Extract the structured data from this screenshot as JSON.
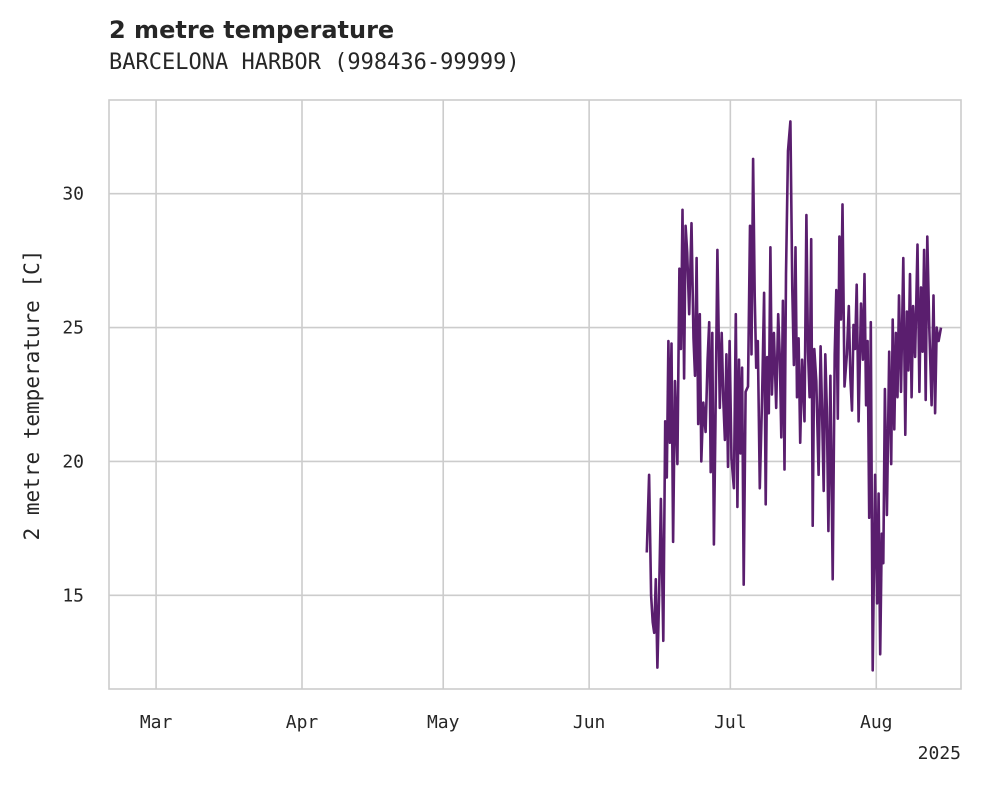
{
  "chart_data": {
    "type": "line",
    "title": "2 metre temperature",
    "subtitle": "BARCELONA HARBOR (998436-99999)",
    "xlabel": "",
    "ylabel": "2 metre temperature [C]",
    "xlim": [
      "2025-02-19",
      "2025-08-19"
    ],
    "ylim": [
      11.5,
      33.5
    ],
    "x_ticks": [
      "Mar",
      "Apr",
      "May",
      "Jun",
      "Jul",
      "Aug"
    ],
    "x_tick_dates": [
      "2025-03-01",
      "2025-04-01",
      "2025-05-01",
      "2025-06-01",
      "2025-07-01",
      "2025-08-01"
    ],
    "x_offset_label": "2025",
    "y_ticks": [
      15,
      20,
      25,
      30
    ],
    "grid": true,
    "color": "#5a1e6e",
    "series": [
      {
        "x": [
          "2025-06-13",
          "2025-06-13",
          "2025-06-14",
          "2025-06-14",
          "2025-06-14",
          "2025-06-15",
          "2025-06-15",
          "2025-06-15",
          "2025-06-16",
          "2025-06-16",
          "2025-06-17",
          "2025-06-17",
          "2025-06-17",
          "2025-06-18",
          "2025-06-18",
          "2025-06-18",
          "2025-06-19",
          "2025-06-19",
          "2025-06-20",
          "2025-06-20",
          "2025-06-20",
          "2025-06-21",
          "2025-06-21",
          "2025-06-21",
          "2025-06-22",
          "2025-06-22",
          "2025-06-23",
          "2025-06-23",
          "2025-06-23",
          "2025-06-24",
          "2025-06-24",
          "2025-06-24",
          "2025-06-25",
          "2025-06-25",
          "2025-06-26",
          "2025-06-26",
          "2025-06-26",
          "2025-06-27",
          "2025-06-27",
          "2025-06-27",
          "2025-06-28",
          "2025-06-28",
          "2025-06-29",
          "2025-06-29",
          "2025-06-29",
          "2025-06-30",
          "2025-06-30",
          "2025-06-30",
          "2025-07-01",
          "2025-07-01",
          "2025-07-02",
          "2025-07-02",
          "2025-07-02",
          "2025-07-03",
          "2025-07-03",
          "2025-07-03",
          "2025-07-04",
          "2025-07-04",
          "2025-07-05",
          "2025-07-05",
          "2025-07-05",
          "2025-07-06",
          "2025-07-06",
          "2025-07-06",
          "2025-07-07",
          "2025-07-07",
          "2025-07-08",
          "2025-07-08",
          "2025-07-08",
          "2025-07-09",
          "2025-07-09",
          "2025-07-09",
          "2025-07-10",
          "2025-07-10",
          "2025-07-11",
          "2025-07-11",
          "2025-07-11",
          "2025-07-12",
          "2025-07-12",
          "2025-07-12",
          "2025-07-13",
          "2025-07-13",
          "2025-07-14",
          "2025-07-14",
          "2025-07-14",
          "2025-07-15",
          "2025-07-15",
          "2025-07-15",
          "2025-07-16",
          "2025-07-16",
          "2025-07-17",
          "2025-07-17",
          "2025-07-17",
          "2025-07-18",
          "2025-07-18",
          "2025-07-18",
          "2025-07-19",
          "2025-07-19",
          "2025-07-20",
          "2025-07-20",
          "2025-07-20",
          "2025-07-21",
          "2025-07-21",
          "2025-07-21",
          "2025-07-22",
          "2025-07-22",
          "2025-07-23",
          "2025-07-23",
          "2025-07-23",
          "2025-07-24",
          "2025-07-24",
          "2025-07-24",
          "2025-07-25",
          "2025-07-25",
          "2025-07-26",
          "2025-07-26",
          "2025-07-26",
          "2025-07-27",
          "2025-07-27",
          "2025-07-27",
          "2025-07-28",
          "2025-07-28",
          "2025-07-29",
          "2025-07-29",
          "2025-07-29",
          "2025-07-30",
          "2025-07-30",
          "2025-07-30",
          "2025-07-31",
          "2025-07-31",
          "2025-08-01",
          "2025-08-01",
          "2025-08-01",
          "2025-08-02",
          "2025-08-02",
          "2025-08-02",
          "2025-08-03",
          "2025-08-03",
          "2025-08-04",
          "2025-08-04",
          "2025-08-04",
          "2025-08-05",
          "2025-08-05",
          "2025-08-05",
          "2025-08-06",
          "2025-08-06",
          "2025-08-07",
          "2025-08-07",
          "2025-08-07",
          "2025-08-08",
          "2025-08-08",
          "2025-08-08",
          "2025-08-09",
          "2025-08-09",
          "2025-08-10",
          "2025-08-10",
          "2025-08-10",
          "2025-08-11",
          "2025-08-11",
          "2025-08-11",
          "2025-08-12",
          "2025-08-12",
          "2025-08-13",
          "2025-08-13",
          "2025-08-13",
          "2025-08-14",
          "2025-08-14"
        ],
        "y": [
          16.6,
          19.5,
          15.0,
          14.0,
          13.6,
          15.6,
          12.3,
          14.8,
          18.6,
          13.3,
          21.5,
          19.4,
          24.5,
          20.7,
          24.4,
          17.0,
          23.0,
          19.9,
          27.2,
          24.2,
          29.4,
          23.1,
          28.8,
          27.8,
          25.5,
          28.9,
          24.6,
          23.2,
          27.6,
          21.4,
          25.5,
          20.0,
          22.2,
          21.1,
          23.8,
          25.2,
          19.6,
          24.8,
          16.9,
          21.3,
          27.9,
          22.0,
          24.8,
          22.3,
          20.8,
          24.0,
          19.8,
          24.5,
          20.1,
          19.0,
          25.5,
          18.3,
          23.8,
          20.3,
          23.5,
          15.4,
          22.6,
          22.8,
          28.8,
          24.0,
          31.3,
          26.2,
          23.5,
          24.5,
          19.0,
          22.4,
          26.3,
          18.4,
          23.9,
          21.8,
          28.0,
          22.5,
          24.8,
          22.0,
          25.5,
          23.9,
          20.9,
          26.0,
          19.7,
          27.0,
          31.6,
          32.7,
          26.4,
          23.6,
          28.0,
          22.4,
          24.6,
          20.7,
          23.8,
          21.5,
          29.2,
          24.1,
          22.4,
          28.3,
          17.6,
          24.2,
          23.0,
          19.5,
          24.3,
          21.8,
          18.9,
          24.0,
          22.0,
          17.4,
          23.2,
          15.6,
          24.0,
          26.4,
          21.6,
          28.4,
          25.3,
          29.6,
          22.8,
          24.0,
          25.8,
          23.1,
          21.9,
          25.1,
          24.2,
          26.6,
          21.5,
          25.9,
          23.8,
          27.0,
          22.1,
          24.5,
          17.9,
          25.2,
          12.2,
          19.5,
          14.7,
          18.8,
          12.8,
          17.3,
          16.2,
          22.7,
          18.0,
          24.1,
          19.9,
          25.3,
          21.2,
          24.8,
          22.4,
          26.2,
          22.6,
          27.6,
          21.0,
          25.6,
          23.4,
          27.0,
          22.4,
          25.8,
          23.9,
          28.1,
          22.6,
          26.5,
          24.1,
          27.9,
          22.3,
          28.4,
          25.1,
          22.1,
          26.2,
          21.8,
          25.0,
          24.5,
          25.0
        ]
      }
    ]
  }
}
